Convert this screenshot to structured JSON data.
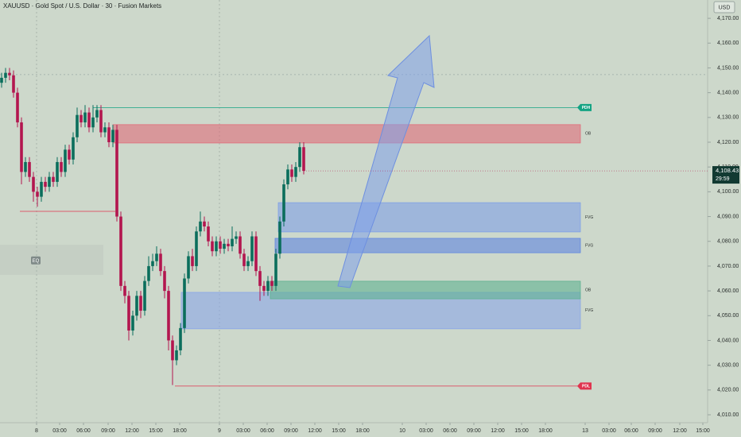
{
  "chart_data": {
    "type": "candlestick",
    "title": "XAUUSD · Gold Spot / U.S. Dollar · 30 · Fusion Markets",
    "currency": "USD",
    "last_price_label": "4,108.43",
    "countdown": "29:59",
    "up_color": "#0b6e5c",
    "down_color": "#b3164f",
    "open": [
      4144,
      4146,
      4148,
      4147,
      4140,
      4128,
      4108,
      4112,
      4106,
      4100,
      4098,
      4104,
      4102,
      4106,
      4104,
      4112,
      4108,
      4117,
      4113,
      4122,
      4131,
      4128,
      4132,
      4126,
      4130,
      4133,
      4124,
      4126,
      4120,
      4125,
      4090,
      4062,
      4058,
      4044,
      4050,
      4058,
      4052,
      4064,
      4070,
      4072,
      4075,
      4068,
      4060,
      4040,
      4032,
      4036,
      4045,
      4065,
      4074,
      4070,
      4084,
      4088,
      4086,
      4080,
      4076,
      4080,
      4077,
      4079,
      4078,
      4081,
      4082,
      4075,
      4070,
      4072,
      4082,
      4068,
      4062,
      4060,
      4064,
      4062,
      4075,
      4088,
      4103,
      4109,
      4106,
      4110,
      4118
    ],
    "high": [
      4148,
      4150,
      4150,
      4149,
      4142,
      4130,
      4114,
      4114,
      4108,
      4102,
      4106,
      4106,
      4108,
      4108,
      4114,
      4114,
      4119,
      4119,
      4124,
      4134,
      4133,
      4135,
      4134,
      4135,
      4135,
      4135,
      4128,
      4128,
      4127,
      4127,
      4092,
      4064,
      4060,
      4052,
      4060,
      4060,
      4066,
      4074,
      4075,
      4078,
      4077,
      4070,
      4062,
      4042,
      4038,
      4047,
      4067,
      4076,
      4077,
      4086,
      4092,
      4090,
      4088,
      4082,
      4082,
      4082,
      4081,
      4081,
      4086,
      4084,
      4084,
      4077,
      4074,
      4084,
      4084,
      4070,
      4064,
      4066,
      4066,
      4077,
      4090,
      4105,
      4111,
      4111,
      4112,
      4120,
      4120
    ],
    "low": [
      4142,
      4144,
      4145,
      4138,
      4126,
      4103,
      4106,
      4104,
      4096,
      4094,
      4096,
      4100,
      4100,
      4102,
      4102,
      4106,
      4106,
      4111,
      4111,
      4120,
      4126,
      4126,
      4124,
      4124,
      4128,
      4122,
      4122,
      4118,
      4118,
      4088,
      4060,
      4055,
      4040,
      4042,
      4048,
      4049,
      4050,
      4062,
      4068,
      4070,
      4066,
      4057,
      4036,
      4022,
      4030,
      4034,
      4043,
      4063,
      4068,
      4068,
      4082,
      4084,
      4078,
      4074,
      4074,
      4075,
      4075,
      4076,
      4076,
      4079,
      4073,
      4068,
      4068,
      4070,
      4066,
      4056,
      4058,
      4058,
      4060,
      4060,
      4073,
      4086,
      4101,
      4104,
      4104,
      4108,
      4107
    ],
    "close": [
      4146,
      4148,
      4147,
      4140,
      4128,
      4108,
      4112,
      4106,
      4100,
      4098,
      4104,
      4102,
      4106,
      4104,
      4112,
      4108,
      4117,
      4113,
      4122,
      4131,
      4128,
      4132,
      4126,
      4130,
      4133,
      4124,
      4126,
      4120,
      4125,
      4090,
      4062,
      4058,
      4044,
      4050,
      4058,
      4052,
      4064,
      4070,
      4072,
      4075,
      4068,
      4060,
      4040,
      4032,
      4036,
      4045,
      4065,
      4074,
      4070,
      4084,
      4088,
      4086,
      4080,
      4076,
      4080,
      4077,
      4079,
      4078,
      4081,
      4082,
      4075,
      4070,
      4072,
      4082,
      4068,
      4062,
      4060,
      4064,
      4062,
      4075,
      4088,
      4103,
      4109,
      4106,
      4110,
      4118,
      4108.43
    ],
    "ylim": [
      4006.8,
      4177.4
    ],
    "yticks": [
      {
        "value": 4010,
        "label": "4,010.00"
      },
      {
        "value": 4020,
        "label": "4,020.00"
      },
      {
        "value": 4030,
        "label": "4,030.00"
      },
      {
        "value": 4040,
        "label": "4,040.00"
      },
      {
        "value": 4050,
        "label": "4,050.00"
      },
      {
        "value": 4060,
        "label": "4,060.00"
      },
      {
        "value": 4070,
        "label": "4,070.00"
      },
      {
        "value": 4080,
        "label": "4,080.00"
      },
      {
        "value": 4090,
        "label": "4,090.00"
      },
      {
        "value": 4100,
        "label": "4,100.00"
      },
      {
        "value": 4110,
        "label": "4,110.00"
      },
      {
        "value": 4120,
        "label": "4,120.00"
      },
      {
        "value": 4130,
        "label": "4,130.00"
      },
      {
        "value": 4140,
        "label": "4,140.00"
      },
      {
        "value": 4150,
        "label": "4,150.00"
      },
      {
        "value": 4160,
        "label": "4,160.00"
      },
      {
        "value": 4170,
        "label": "4,170.00"
      }
    ],
    "xlim": [
      -0.4,
      177.6
    ],
    "xticks": [
      {
        "value": 8.8,
        "label": "8"
      },
      {
        "value": 14.6,
        "label": "03:00"
      },
      {
        "value": 20.6,
        "label": "06:00"
      },
      {
        "value": 26.8,
        "label": "09:00"
      },
      {
        "value": 32.8,
        "label": "12:00"
      },
      {
        "value": 38.8,
        "label": "15:00"
      },
      {
        "value": 44.8,
        "label": "18:00"
      },
      {
        "value": 54.8,
        "label": "9"
      },
      {
        "value": 60.8,
        "label": "03:00"
      },
      {
        "value": 66.8,
        "label": "06:00"
      },
      {
        "value": 72.8,
        "label": "09:00"
      },
      {
        "value": 78.8,
        "label": "12:00"
      },
      {
        "value": 84.8,
        "label": "15:00"
      },
      {
        "value": 90.8,
        "label": "18:00"
      },
      {
        "value": 100.8,
        "label": "10"
      },
      {
        "value": 106.8,
        "label": "03:00"
      },
      {
        "value": 112.8,
        "label": "06:00"
      },
      {
        "value": 118.8,
        "label": "09:00"
      },
      {
        "value": 124.8,
        "label": "12:00"
      },
      {
        "value": 130.8,
        "label": "15:00"
      },
      {
        "value": 136.8,
        "label": "18:00"
      },
      {
        "value": 146.8,
        "label": "13"
      },
      {
        "value": 152.8,
        "label": "03:00"
      },
      {
        "value": 158.4,
        "label": "06:00"
      },
      {
        "value": 164.4,
        "label": "09:00"
      },
      {
        "value": 170.6,
        "label": "12:00"
      },
      {
        "value": 176.4,
        "label": "15:00"
      }
    ],
    "day_separators": [
      8.8,
      54.8
    ],
    "zones": [
      {
        "label": "OB",
        "top": 4127.1,
        "bottom": 4119.7,
        "start": 28,
        "end": 145.6,
        "color": "#e06c7a"
      },
      {
        "label": "FVG",
        "top": 4095.6,
        "bottom": 4083.8,
        "start": 69.6,
        "end": 145.6,
        "color": "#7fa0e6"
      },
      {
        "label": "FVG",
        "top": 4081.2,
        "bottom": 4075.4,
        "start": 68.8,
        "end": 145.6,
        "color": "#5f86e0"
      },
      {
        "label": "FVG",
        "top": 4059.4,
        "bottom": 4044.7,
        "start": 45.2,
        "end": 145.6,
        "color": "#8aa6e8"
      },
      {
        "label": "OB",
        "top": 4063.9,
        "bottom": 4056.8,
        "start": 67.6,
        "end": 145.6,
        "color": "#5fb391"
      }
    ],
    "levels": [
      {
        "label": "PDH",
        "value": 4134,
        "start": 23,
        "end": 146.6,
        "color": "#13a383"
      },
      {
        "label": "PDL",
        "value": 4021.6,
        "start": 43.6,
        "end": 146.6,
        "color": "#e0344f"
      },
      {
        "value": 4092.1,
        "start": 4.6,
        "end": 28.6,
        "color": "#e0344f"
      },
      {
        "value": 4147.3,
        "start": -0.4,
        "end": 177.6,
        "color": "#9aa8a6"
      }
    ],
    "markers": [
      {
        "label": "EQ",
        "value": 4072.3,
        "x": 8.6
      }
    ]
  }
}
